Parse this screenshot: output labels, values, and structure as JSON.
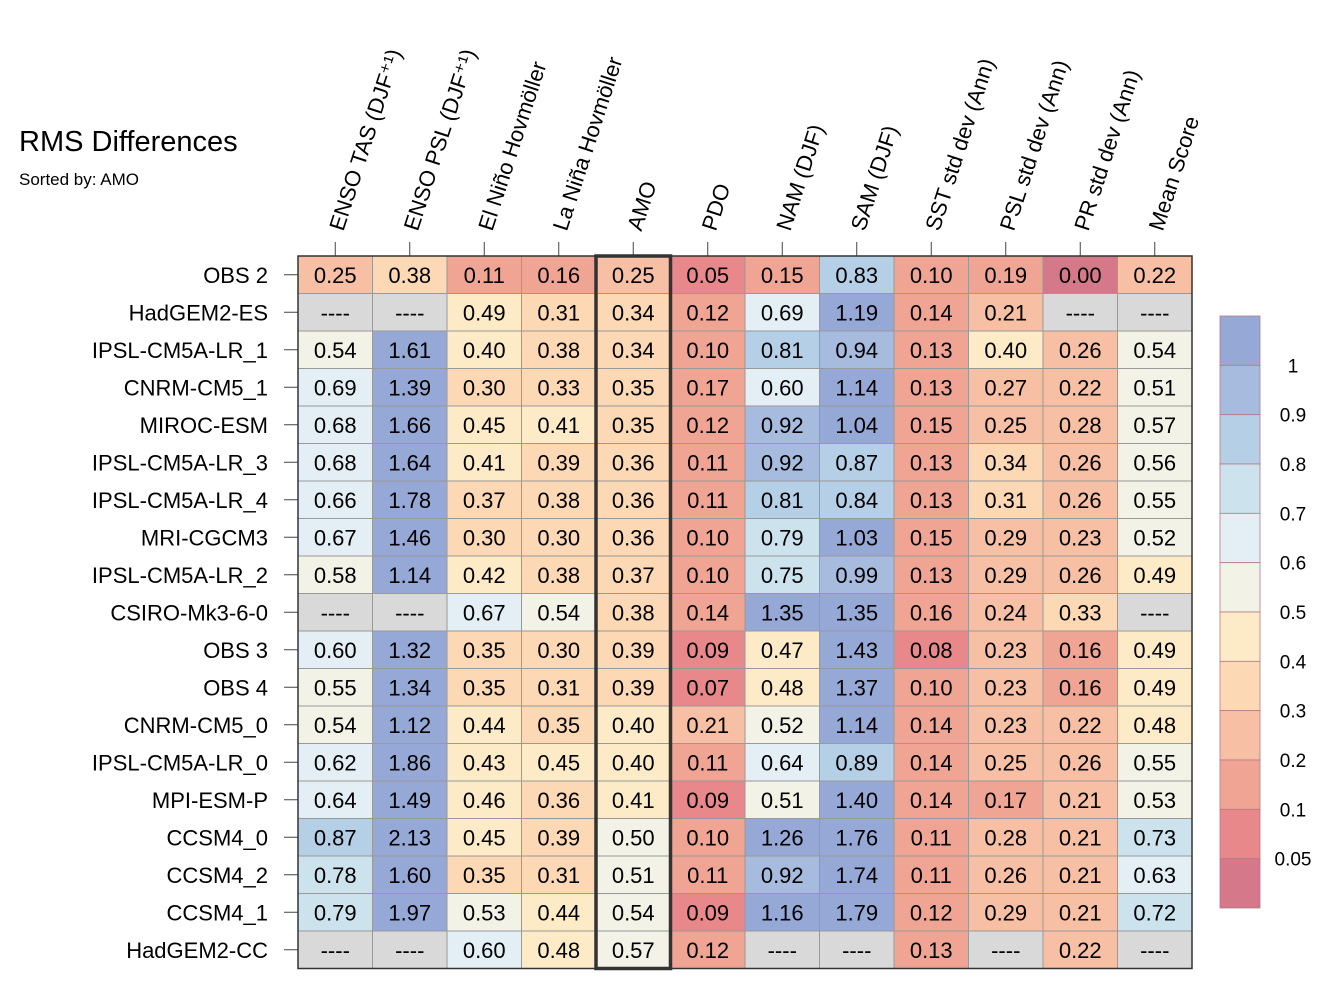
{
  "chart_data": {
    "type": "heatmap",
    "title": "RMS Differences",
    "subtitle": "Sorted by: AMO",
    "columns": [
      "ENSO TAS (DJF⁺¹)",
      "ENSO PSL (DJF⁺¹)",
      "El Niño Hovmöller",
      "La Niña Hovmöller",
      "AMO",
      "PDO",
      "NAM (DJF)",
      "SAM (DJF)",
      "SST std dev (Ann)",
      "PSL std dev (Ann)",
      "PR std dev (Ann)",
      "Mean Score"
    ],
    "highlighted_column": "AMO",
    "missing_label": "----",
    "rows": [
      {
        "name": "OBS 2",
        "values": [
          0.25,
          0.38,
          0.11,
          0.16,
          0.25,
          0.05,
          0.15,
          0.83,
          0.1,
          0.19,
          0.0,
          0.22
        ]
      },
      {
        "name": "HadGEM2-ES",
        "values": [
          null,
          null,
          0.49,
          0.31,
          0.34,
          0.12,
          0.69,
          1.19,
          0.14,
          0.21,
          null,
          null
        ]
      },
      {
        "name": "IPSL-CM5A-LR_1",
        "values": [
          0.54,
          1.61,
          0.4,
          0.38,
          0.34,
          0.1,
          0.81,
          0.94,
          0.13,
          0.4,
          0.26,
          0.54
        ]
      },
      {
        "name": "CNRM-CM5_1",
        "values": [
          0.69,
          1.39,
          0.3,
          0.33,
          0.35,
          0.17,
          0.6,
          1.14,
          0.13,
          0.27,
          0.22,
          0.51
        ]
      },
      {
        "name": "MIROC-ESM",
        "values": [
          0.68,
          1.66,
          0.45,
          0.41,
          0.35,
          0.12,
          0.92,
          1.04,
          0.15,
          0.25,
          0.28,
          0.57
        ]
      },
      {
        "name": "IPSL-CM5A-LR_3",
        "values": [
          0.68,
          1.64,
          0.41,
          0.39,
          0.36,
          0.11,
          0.92,
          0.87,
          0.13,
          0.34,
          0.26,
          0.56
        ]
      },
      {
        "name": "IPSL-CM5A-LR_4",
        "values": [
          0.66,
          1.78,
          0.37,
          0.38,
          0.36,
          0.11,
          0.81,
          0.84,
          0.13,
          0.31,
          0.26,
          0.55
        ]
      },
      {
        "name": "MRI-CGCM3",
        "values": [
          0.67,
          1.46,
          0.3,
          0.3,
          0.36,
          0.1,
          0.79,
          1.03,
          0.15,
          0.29,
          0.23,
          0.52
        ]
      },
      {
        "name": "IPSL-CM5A-LR_2",
        "values": [
          0.58,
          1.14,
          0.42,
          0.38,
          0.37,
          0.1,
          0.75,
          0.99,
          0.13,
          0.29,
          0.26,
          0.49
        ]
      },
      {
        "name": "CSIRO-Mk3-6-0",
        "values": [
          null,
          null,
          0.67,
          0.54,
          0.38,
          0.14,
          1.35,
          1.35,
          0.16,
          0.24,
          0.33,
          null
        ]
      },
      {
        "name": "OBS 3",
        "values": [
          0.6,
          1.32,
          0.35,
          0.3,
          0.39,
          0.09,
          0.47,
          1.43,
          0.08,
          0.23,
          0.16,
          0.49
        ]
      },
      {
        "name": "OBS 4",
        "values": [
          0.55,
          1.34,
          0.35,
          0.31,
          0.39,
          0.07,
          0.48,
          1.37,
          0.1,
          0.23,
          0.16,
          0.49
        ]
      },
      {
        "name": "CNRM-CM5_0",
        "values": [
          0.54,
          1.12,
          0.44,
          0.35,
          0.4,
          0.21,
          0.52,
          1.14,
          0.14,
          0.23,
          0.22,
          0.48
        ]
      },
      {
        "name": "IPSL-CM5A-LR_0",
        "values": [
          0.62,
          1.86,
          0.43,
          0.45,
          0.4,
          0.11,
          0.64,
          0.89,
          0.14,
          0.25,
          0.26,
          0.55
        ]
      },
      {
        "name": "MPI-ESM-P",
        "values": [
          0.64,
          1.49,
          0.46,
          0.36,
          0.41,
          0.09,
          0.51,
          1.4,
          0.14,
          0.17,
          0.21,
          0.53
        ]
      },
      {
        "name": "CCSM4_0",
        "values": [
          0.87,
          2.13,
          0.45,
          0.39,
          0.5,
          0.1,
          1.26,
          1.76,
          0.11,
          0.28,
          0.21,
          0.73
        ]
      },
      {
        "name": "CCSM4_2",
        "values": [
          0.78,
          1.6,
          0.35,
          0.31,
          0.51,
          0.11,
          0.92,
          1.74,
          0.11,
          0.26,
          0.21,
          0.63
        ]
      },
      {
        "name": "CCSM4_1",
        "values": [
          0.79,
          1.97,
          0.53,
          0.44,
          0.54,
          0.09,
          1.16,
          1.79,
          0.12,
          0.29,
          0.21,
          0.72
        ]
      },
      {
        "name": "HadGEM2-CC",
        "values": [
          null,
          null,
          0.6,
          0.48,
          0.57,
          0.12,
          null,
          null,
          0.13,
          null,
          0.22,
          null
        ]
      }
    ],
    "colorbar": {
      "labels": [
        "1",
        "0.9",
        "0.8",
        "0.7",
        "0.6",
        "0.5",
        "0.4",
        "0.3",
        "0.2",
        "0.1",
        "0.05"
      ],
      "thresholds": [
        0.05,
        0.1,
        0.2,
        0.3,
        0.4,
        0.5,
        0.6,
        0.7,
        0.8,
        0.9,
        1.0
      ],
      "colors": [
        "#d4788a",
        "#e8888a",
        "#f0a594",
        "#f7c0a4",
        "#fcd8b4",
        "#fdebc8",
        "#f3f2e6",
        "#e3eff4",
        "#cce3ee",
        "#b5cfe6",
        "#a7bbdf",
        "#96a8d6"
      ],
      "missing_color": "#d9d9d9"
    }
  }
}
